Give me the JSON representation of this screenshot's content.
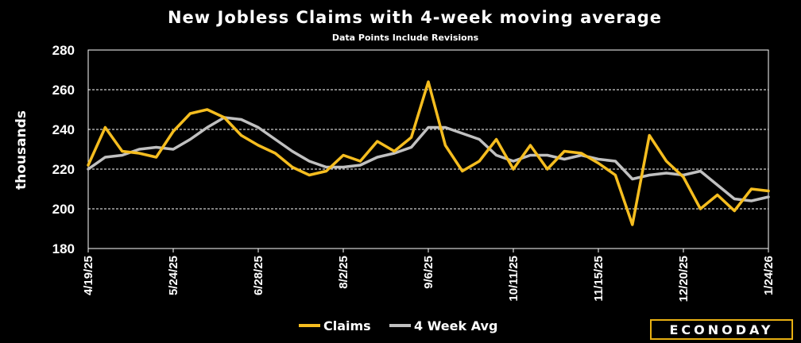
{
  "chart_data": {
    "type": "line",
    "title": "New Jobless Claims with 4-week moving average",
    "subtitle": "Data Points Include Revisions",
    "ylabel": "thousands",
    "xlabel": "",
    "ylim": [
      180,
      280
    ],
    "yticks": [
      180,
      200,
      220,
      240,
      260,
      280
    ],
    "grid": true,
    "legend_position": "bottom-center",
    "x": [
      "4/19/25",
      "4/26/25",
      "5/3/25",
      "5/10/25",
      "5/17/25",
      "5/24/25",
      "5/31/25",
      "6/7/25",
      "6/14/25",
      "6/21/25",
      "6/28/25",
      "7/5/25",
      "7/12/25",
      "7/19/25",
      "7/26/25",
      "8/2/25",
      "8/9/25",
      "8/16/25",
      "8/23/25",
      "8/30/25",
      "9/6/25",
      "9/13/25",
      "9/20/25",
      "9/27/25",
      "10/4/25",
      "10/11/25",
      "10/18/25",
      "10/25/25",
      "11/1/25",
      "11/8/25",
      "11/15/25",
      "11/22/25",
      "11/29/25",
      "12/6/25",
      "12/13/25",
      "12/20/25",
      "12/27/25",
      "1/3/26",
      "1/10/26",
      "1/17/26",
      "1/24/26"
    ],
    "xtick_labels": [
      "4/19/25",
      "5/24/25",
      "6/28/25",
      "8/2/25",
      "9/6/25",
      "10/11/25",
      "11/15/25",
      "12/20/25",
      "1/24/26"
    ],
    "series": [
      {
        "name": "Claims",
        "color": "#f5bd1f",
        "values": [
          222,
          241,
          229,
          228,
          226,
          239,
          248,
          250,
          246,
          237,
          232,
          228,
          221,
          217,
          219,
          227,
          224,
          234,
          229,
          236,
          264,
          232,
          219,
          224,
          235,
          220,
          232,
          220,
          229,
          228,
          223,
          217,
          192,
          237,
          224,
          216,
          200,
          207,
          199,
          210,
          209
        ]
      },
      {
        "name": "4 Week Avg",
        "color": "#c0c0c0",
        "values": [
          220,
          226,
          227,
          230,
          231,
          230,
          235,
          241,
          246,
          245,
          241,
          235,
          229,
          224,
          221,
          221,
          222,
          226,
          228,
          231,
          241,
          241,
          238,
          235,
          227,
          224,
          227,
          227,
          225,
          227,
          225,
          224,
          215,
          217,
          218,
          217,
          219,
          212,
          205,
          204,
          206
        ]
      }
    ]
  },
  "branding": {
    "logo_text": "ECONODAY"
  }
}
